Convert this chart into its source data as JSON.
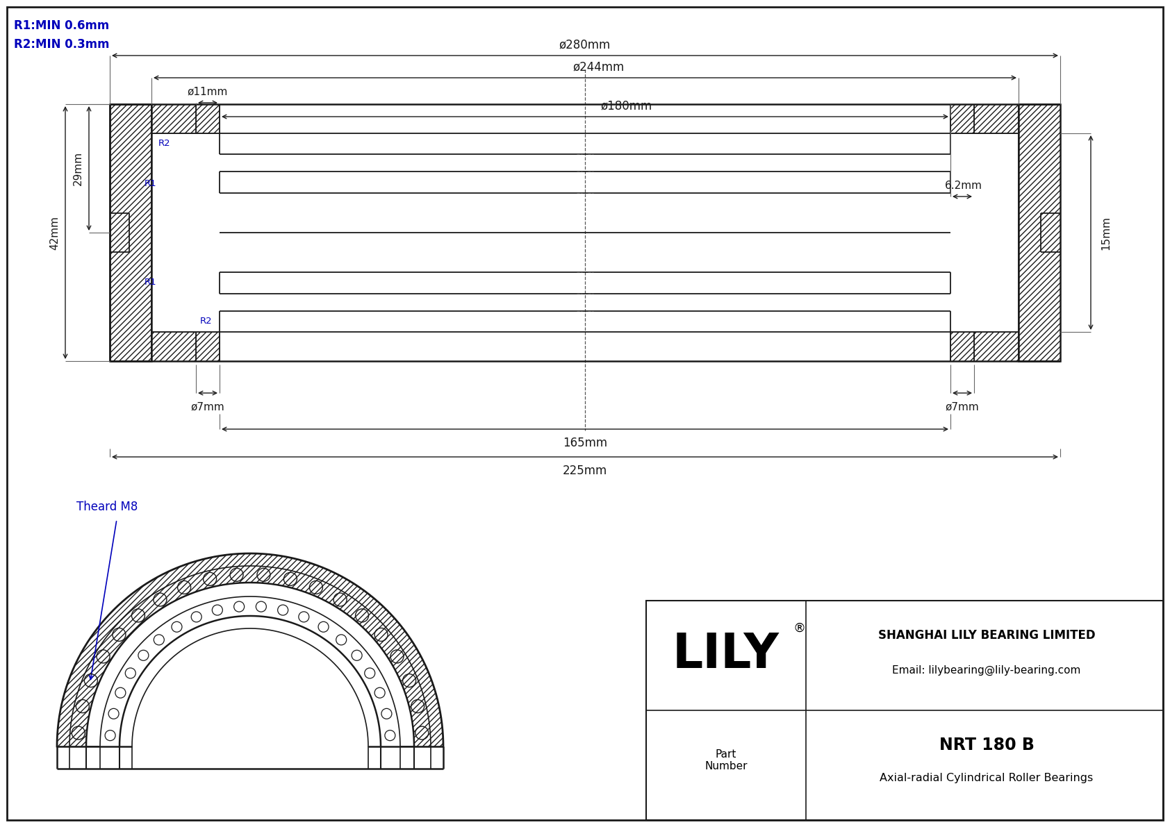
{
  "bg_color": "#ffffff",
  "line_color": "#1a1a1a",
  "blue_color": "#0000bb",
  "r1_label": "R1:MIN 0.6mm",
  "r2_label": "R2:MIN 0.3mm",
  "thread_label": "Theard M8",
  "company": "SHANGHAI LILY BEARING LIMITED",
  "email": "Email: lilybearing@lily-bearing.com",
  "part_label": "Part\nNumber",
  "title": "NRT 180 B",
  "subtitle": "Axial-radial Cylindrical Roller Bearings",
  "dims": {
    "d280": "ø280mm",
    "d244": "ø244mm",
    "d180": "ø180mm",
    "d11": "ø11mm",
    "d7l": "ø7mm",
    "d7r": "ø7mm",
    "h29": "29mm",
    "h42": "42mm",
    "h15": "15mm",
    "w62": "6.2mm",
    "w165": "165mm",
    "w225": "225mm"
  }
}
